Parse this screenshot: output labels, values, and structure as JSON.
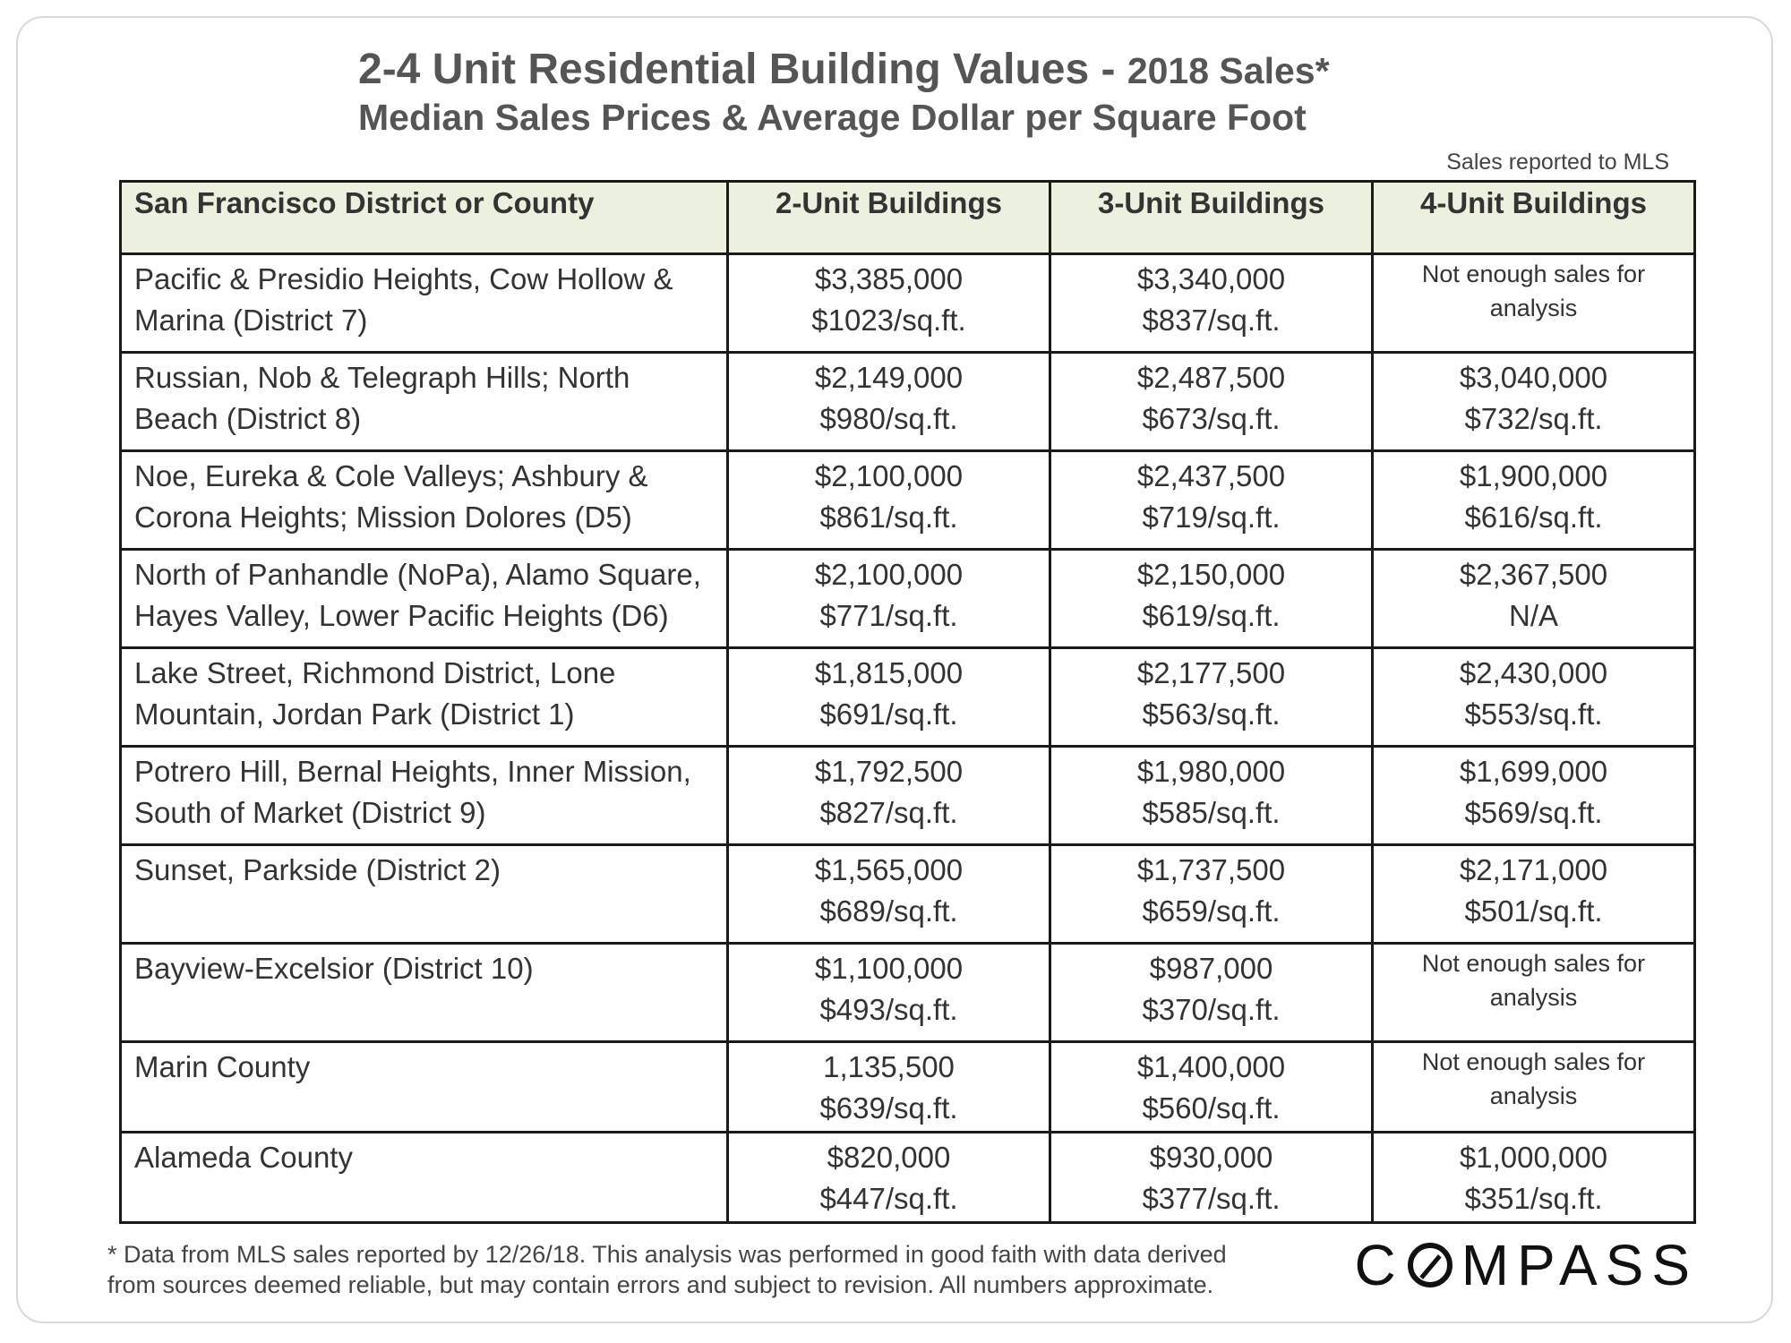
{
  "title": {
    "main": "2-4 Unit Residential Building Values - ",
    "suffix": "2018 Sales*",
    "subtitle": "Median Sales Prices & Average Dollar per Square Foot"
  },
  "source_note": "Sales reported to MLS",
  "table": {
    "headers": [
      "San Francisco District or County",
      "2-Unit Buildings",
      "3-Unit Buildings",
      "4-Unit Buildings"
    ],
    "rows": [
      {
        "area_line1": "Pacific & Presidio Heights, Cow Hollow &",
        "area_line2": "Marina (District 7)",
        "u2_price": "$3,385,000",
        "u2_psf": "$1023/sq.ft.",
        "u3_price": "$3,340,000",
        "u3_psf": "$837/sq.ft.",
        "u4_price": "Not enough sales for",
        "u4_psf": "analysis"
      },
      {
        "area_line1": "Russian, Nob & Telegraph Hills; North",
        "area_line2": "Beach (District 8)",
        "u2_price": "$2,149,000",
        "u2_psf": "$980/sq.ft.",
        "u3_price": "$2,487,500",
        "u3_psf": "$673/sq.ft.",
        "u4_price": "$3,040,000",
        "u4_psf": "$732/sq.ft."
      },
      {
        "area_line1": "Noe, Eureka & Cole Valleys; Ashbury &",
        "area_line2": "Corona Heights; Mission Dolores (D5)",
        "u2_price": "$2,100,000",
        "u2_psf": "$861/sq.ft.",
        "u3_price": "$2,437,500",
        "u3_psf": "$719/sq.ft.",
        "u4_price": "$1,900,000",
        "u4_psf": "$616/sq.ft."
      },
      {
        "area_line1": "North of Panhandle (NoPa), Alamo Square,",
        "area_line2": "Hayes Valley, Lower Pacific Heights (D6)",
        "u2_price": "$2,100,000",
        "u2_psf": "$771/sq.ft.",
        "u3_price": "$2,150,000",
        "u3_psf": "$619/sq.ft.",
        "u4_price": "$2,367,500",
        "u4_psf": "N/A"
      },
      {
        "area_line1": "Lake Street, Richmond District, Lone",
        "area_line2": "Mountain, Jordan Park (District 1)",
        "u2_price": "$1,815,000",
        "u2_psf": "$691/sq.ft.",
        "u3_price": "$2,177,500",
        "u3_psf": "$563/sq.ft.",
        "u4_price": "$2,430,000",
        "u4_psf": "$553/sq.ft."
      },
      {
        "area_line1": "Potrero Hill, Bernal Heights, Inner Mission,",
        "area_line2": "South of Market (District 9)",
        "u2_price": "$1,792,500",
        "u2_psf": "$827/sq.ft.",
        "u3_price": "$1,980,000",
        "u3_psf": "$585/sq.ft.",
        "u4_price": "$1,699,000",
        "u4_psf": "$569/sq.ft."
      },
      {
        "area_line1": "Sunset, Parkside (District 2)",
        "area_line2": "",
        "u2_price": "$1,565,000",
        "u2_psf": "$689/sq.ft.",
        "u3_price": "$1,737,500",
        "u3_psf": "$659/sq.ft.",
        "u4_price": "$2,171,000",
        "u4_psf": "$501/sq.ft."
      },
      {
        "area_line1": "Bayview-Excelsior (District 10)",
        "area_line2": "",
        "u2_price": "$1,100,000",
        "u2_psf": "$493/sq.ft.",
        "u3_price": "$987,000",
        "u3_psf": "$370/sq.ft.",
        "u4_price": "Not enough sales for",
        "u4_psf": "analysis"
      },
      {
        "area_line1": "Marin County",
        "area_line2": "",
        "u2_price": "1,135,500",
        "u2_psf": "$639/sq.ft.",
        "u3_price": "$1,400,000",
        "u3_psf": "$560/sq.ft.",
        "u4_price": "Not enough sales for",
        "u4_psf": "analysis"
      },
      {
        "area_line1": "Alameda County",
        "area_line2": "",
        "u2_price": "$820,000",
        "u2_psf": "$447/sq.ft.",
        "u3_price": "$930,000",
        "u3_psf": "$377/sq.ft.",
        "u4_price": "$1,000,000",
        "u4_psf": "$351/sq.ft."
      }
    ]
  },
  "footnote": {
    "line1": "* Data from MLS sales reported by 12/26/18. This analysis was performed in good faith with data derived",
    "line2": "from sources deemed reliable, but may contain errors and subject to revision. All numbers approximate."
  },
  "logo": {
    "text_before": "C",
    "text_after": "MPASS",
    "icon": "compass-o-icon"
  },
  "colors": {
    "header_bg": "#ebf1de",
    "border": "#1a1a1a",
    "title": "#555555"
  }
}
